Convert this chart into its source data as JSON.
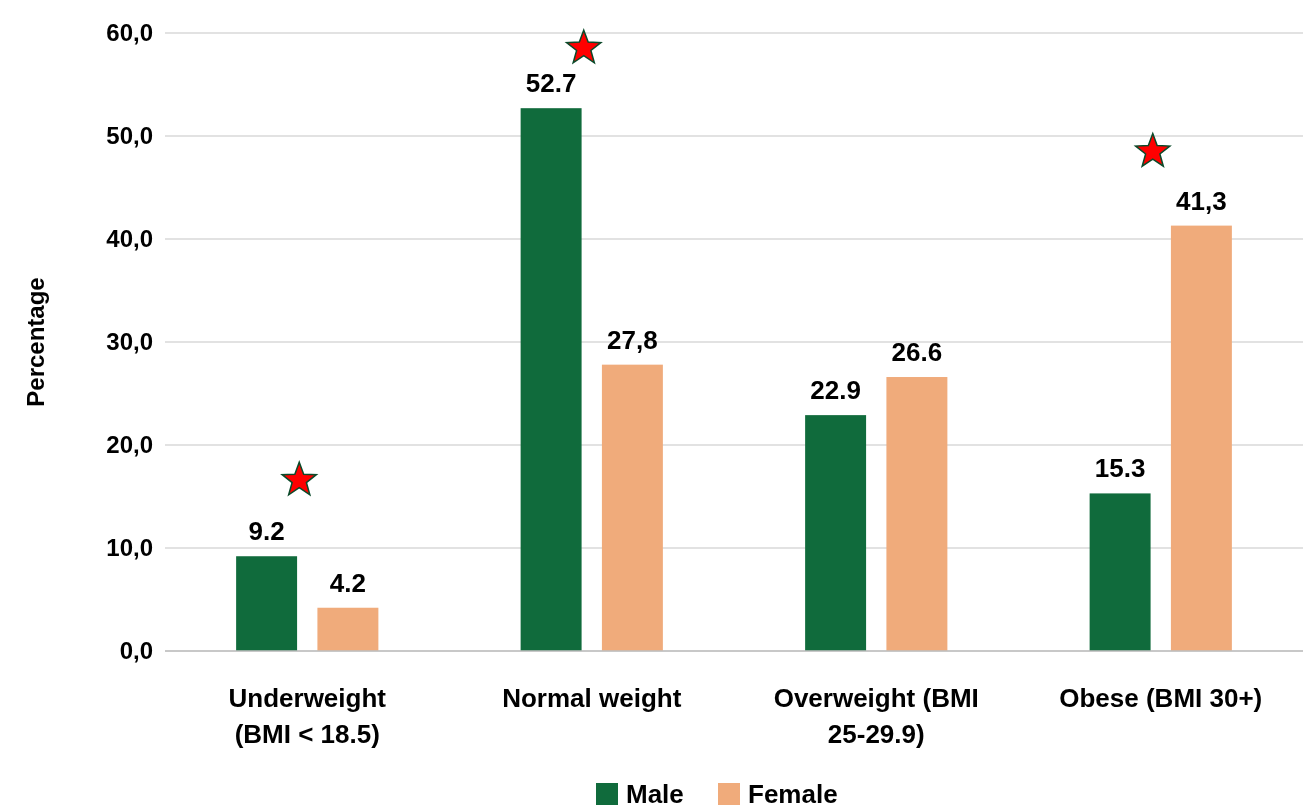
{
  "chart_data": {
    "type": "bar",
    "ylabel": "Percentage",
    "categories": [
      "Underweight (BMI < 18.5)",
      "Normal weight",
      "Overweight (BMI 25-29.9)",
      "Obese (BMI 30+)"
    ],
    "series": [
      {
        "name": "Male",
        "color": "#106b3c",
        "values": [
          9.2,
          52.7,
          22.9,
          15.3
        ],
        "value_labels": [
          "9.2",
          "52.7",
          "22.9",
          "15.3"
        ]
      },
      {
        "name": "Female",
        "color": "#f0ab7b",
        "values": [
          4.2,
          27.8,
          26.6,
          41.3
        ],
        "value_labels": [
          "4.2",
          "27,8",
          "26.6",
          "41,3"
        ]
      }
    ],
    "ylim": [
      0,
      60
    ],
    "yticks": [
      {
        "value": 0,
        "label": "0,0"
      },
      {
        "value": 10,
        "label": "10,0"
      },
      {
        "value": 20,
        "label": "20,0"
      },
      {
        "value": 30,
        "label": "30,0"
      },
      {
        "value": 40,
        "label": "40,0"
      },
      {
        "value": 50,
        "label": "50,0"
      },
      {
        "value": 60,
        "label": "60,0"
      }
    ],
    "grid": "y",
    "legend": "bottom"
  }
}
